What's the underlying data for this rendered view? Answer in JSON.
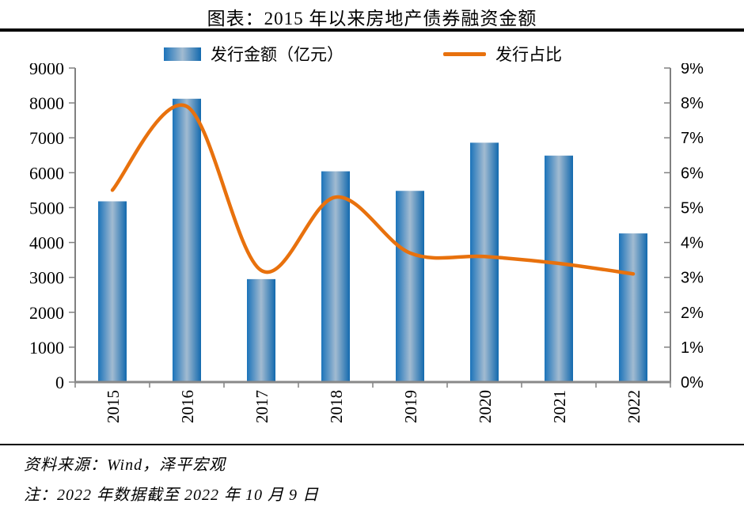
{
  "title": "图表：2015 年以来房地产债券融资金额",
  "legend": {
    "bars": "发行金额（亿元）",
    "line": "发行占比"
  },
  "source": "资料来源：Wind，泽平宏观",
  "note": "注：2022 年数据截至 2022 年 10 月 9 日",
  "chart_data": {
    "type": "bar",
    "subtype": "bar+line combo, dual axis",
    "title": "图表：2015 年以来房地产债券融资金额",
    "categories": [
      "2015",
      "2016",
      "2017",
      "2018",
      "2019",
      "2020",
      "2021",
      "2022"
    ],
    "series": [
      {
        "name": "发行金额（亿元）",
        "type": "bar",
        "axis": "left",
        "values": [
          5180,
          8120,
          2950,
          6040,
          5480,
          6860,
          6490,
          4260
        ]
      },
      {
        "name": "发行占比",
        "type": "line",
        "axis": "right",
        "values": [
          5.5,
          7.9,
          3.2,
          5.3,
          3.7,
          3.6,
          3.4,
          3.1
        ]
      }
    ],
    "left_axis": {
      "min": 0,
      "max": 9000,
      "step": 1000,
      "tick_labels": [
        "0",
        "1000",
        "2000",
        "3000",
        "4000",
        "5000",
        "6000",
        "7000",
        "8000",
        "9000"
      ]
    },
    "right_axis": {
      "min": 0,
      "max": 9,
      "step": 1,
      "format": "percent",
      "tick_labels": [
        "0%",
        "1%",
        "2%",
        "3%",
        "4%",
        "5%",
        "6%",
        "7%",
        "8%",
        "9%"
      ]
    },
    "xlabel": "",
    "ylabel": "",
    "x_tick_rotation": -90,
    "grid": false,
    "legend_position": "top",
    "colors": {
      "bar_edge": "#1B73BA",
      "bar_center": "#A2BBD1",
      "bar_edge_right": "#1269AE",
      "line": "#E8710D",
      "axis": "#808080"
    }
  }
}
